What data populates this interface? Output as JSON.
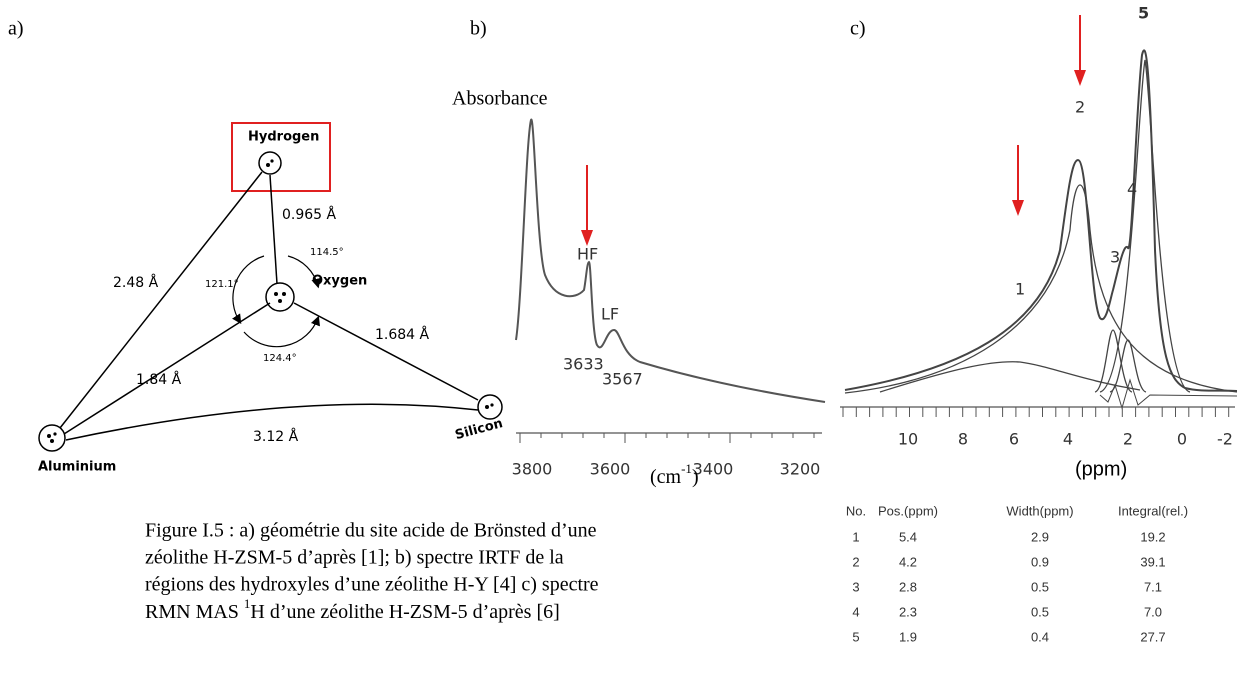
{
  "panels": {
    "a": {
      "label": "a)",
      "atoms": {
        "hydrogen": "Hydrogen",
        "oxygen": "Oxygen",
        "silicon": "Silicon",
        "aluminium": "Aluminium"
      },
      "distances": {
        "o_h": "0.965 Å",
        "al_h": "2.48 Å",
        "o_si": "1.684 Å",
        "o_al": "1.84 Å",
        "al_si": "3.12 Å"
      },
      "angles": {
        "h_o_si": "114.5°",
        "h_o_al": "121.1°",
        "al_o_si": "124.4°"
      }
    },
    "b": {
      "label": "b)",
      "y_label": "Absorbance",
      "peaks": [
        "HF",
        "LF"
      ],
      "peak_positions": [
        "3633",
        "3567"
      ],
      "x_ticks": [
        "3800",
        "3600",
        "3400",
        "3200"
      ],
      "x_unit": [
        "(cm",
        "-1",
        ")"
      ]
    },
    "c": {
      "label": "c)",
      "peaks": [
        "1",
        "2",
        "3",
        "4",
        "5"
      ],
      "x_ticks": [
        "10",
        "8",
        "6",
        "4",
        "2",
        "0",
        "-2"
      ],
      "x_unit": "(ppm)"
    }
  },
  "table": {
    "header": [
      "No.",
      "Pos.(ppm)",
      "Width(ppm)",
      "Integral(rel.)"
    ],
    "rows": [
      [
        "1",
        "5.4",
        "2.9",
        "19.2"
      ],
      [
        "2",
        "4.2",
        "0.9",
        "39.1"
      ],
      [
        "3",
        "2.8",
        "0.5",
        "7.1"
      ],
      [
        "4",
        "2.3",
        "0.5",
        "7.0"
      ],
      [
        "5",
        "1.9",
        "0.4",
        "27.7"
      ]
    ]
  },
  "caption": [
    "Figure I.5 : a) géométrie du site acide de Brönsted d’une",
    "zéolithe H-ZSM-5 d’après [1]; b) spectre IRTF de la",
    "régions des hydroxyles d’une zéolithe H-Y [4] c) spectre",
    "RMN MAS ",
    "1",
    "H d’une zéolithe H-ZSM-5 d’après [6]"
  ]
}
